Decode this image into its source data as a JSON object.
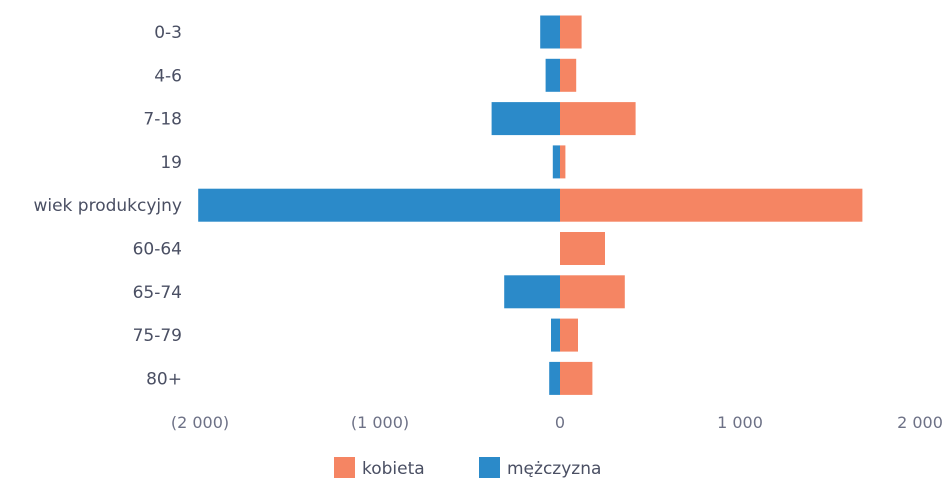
{
  "chart_data": {
    "type": "bar",
    "orientation": "horizontal",
    "categories": [
      "0-3",
      "4-6",
      "7-18",
      "19",
      "wiek produkcyjny",
      "60-64",
      "65-74",
      "75-79",
      "80+"
    ],
    "series": [
      {
        "name": "kobieta",
        "color": "#f58563",
        "values": [
          120,
          90,
          420,
          30,
          1680,
          250,
          360,
          100,
          180
        ]
      },
      {
        "name": "mężczyzna",
        "color": "#2b8ac9",
        "values": [
          -110,
          -80,
          -380,
          -40,
          -2010,
          0,
          -310,
          -50,
          -60
        ]
      }
    ],
    "xlim": [
      -2000,
      2000
    ],
    "xticks": [
      -2000,
      -1000,
      0,
      1000,
      2000
    ],
    "xtick_labels": [
      "(2 000)",
      "(1 000)",
      "0",
      "1 000",
      "2 000"
    ],
    "stacked": true,
    "legend_position": "bottom-center",
    "grid": false
  }
}
